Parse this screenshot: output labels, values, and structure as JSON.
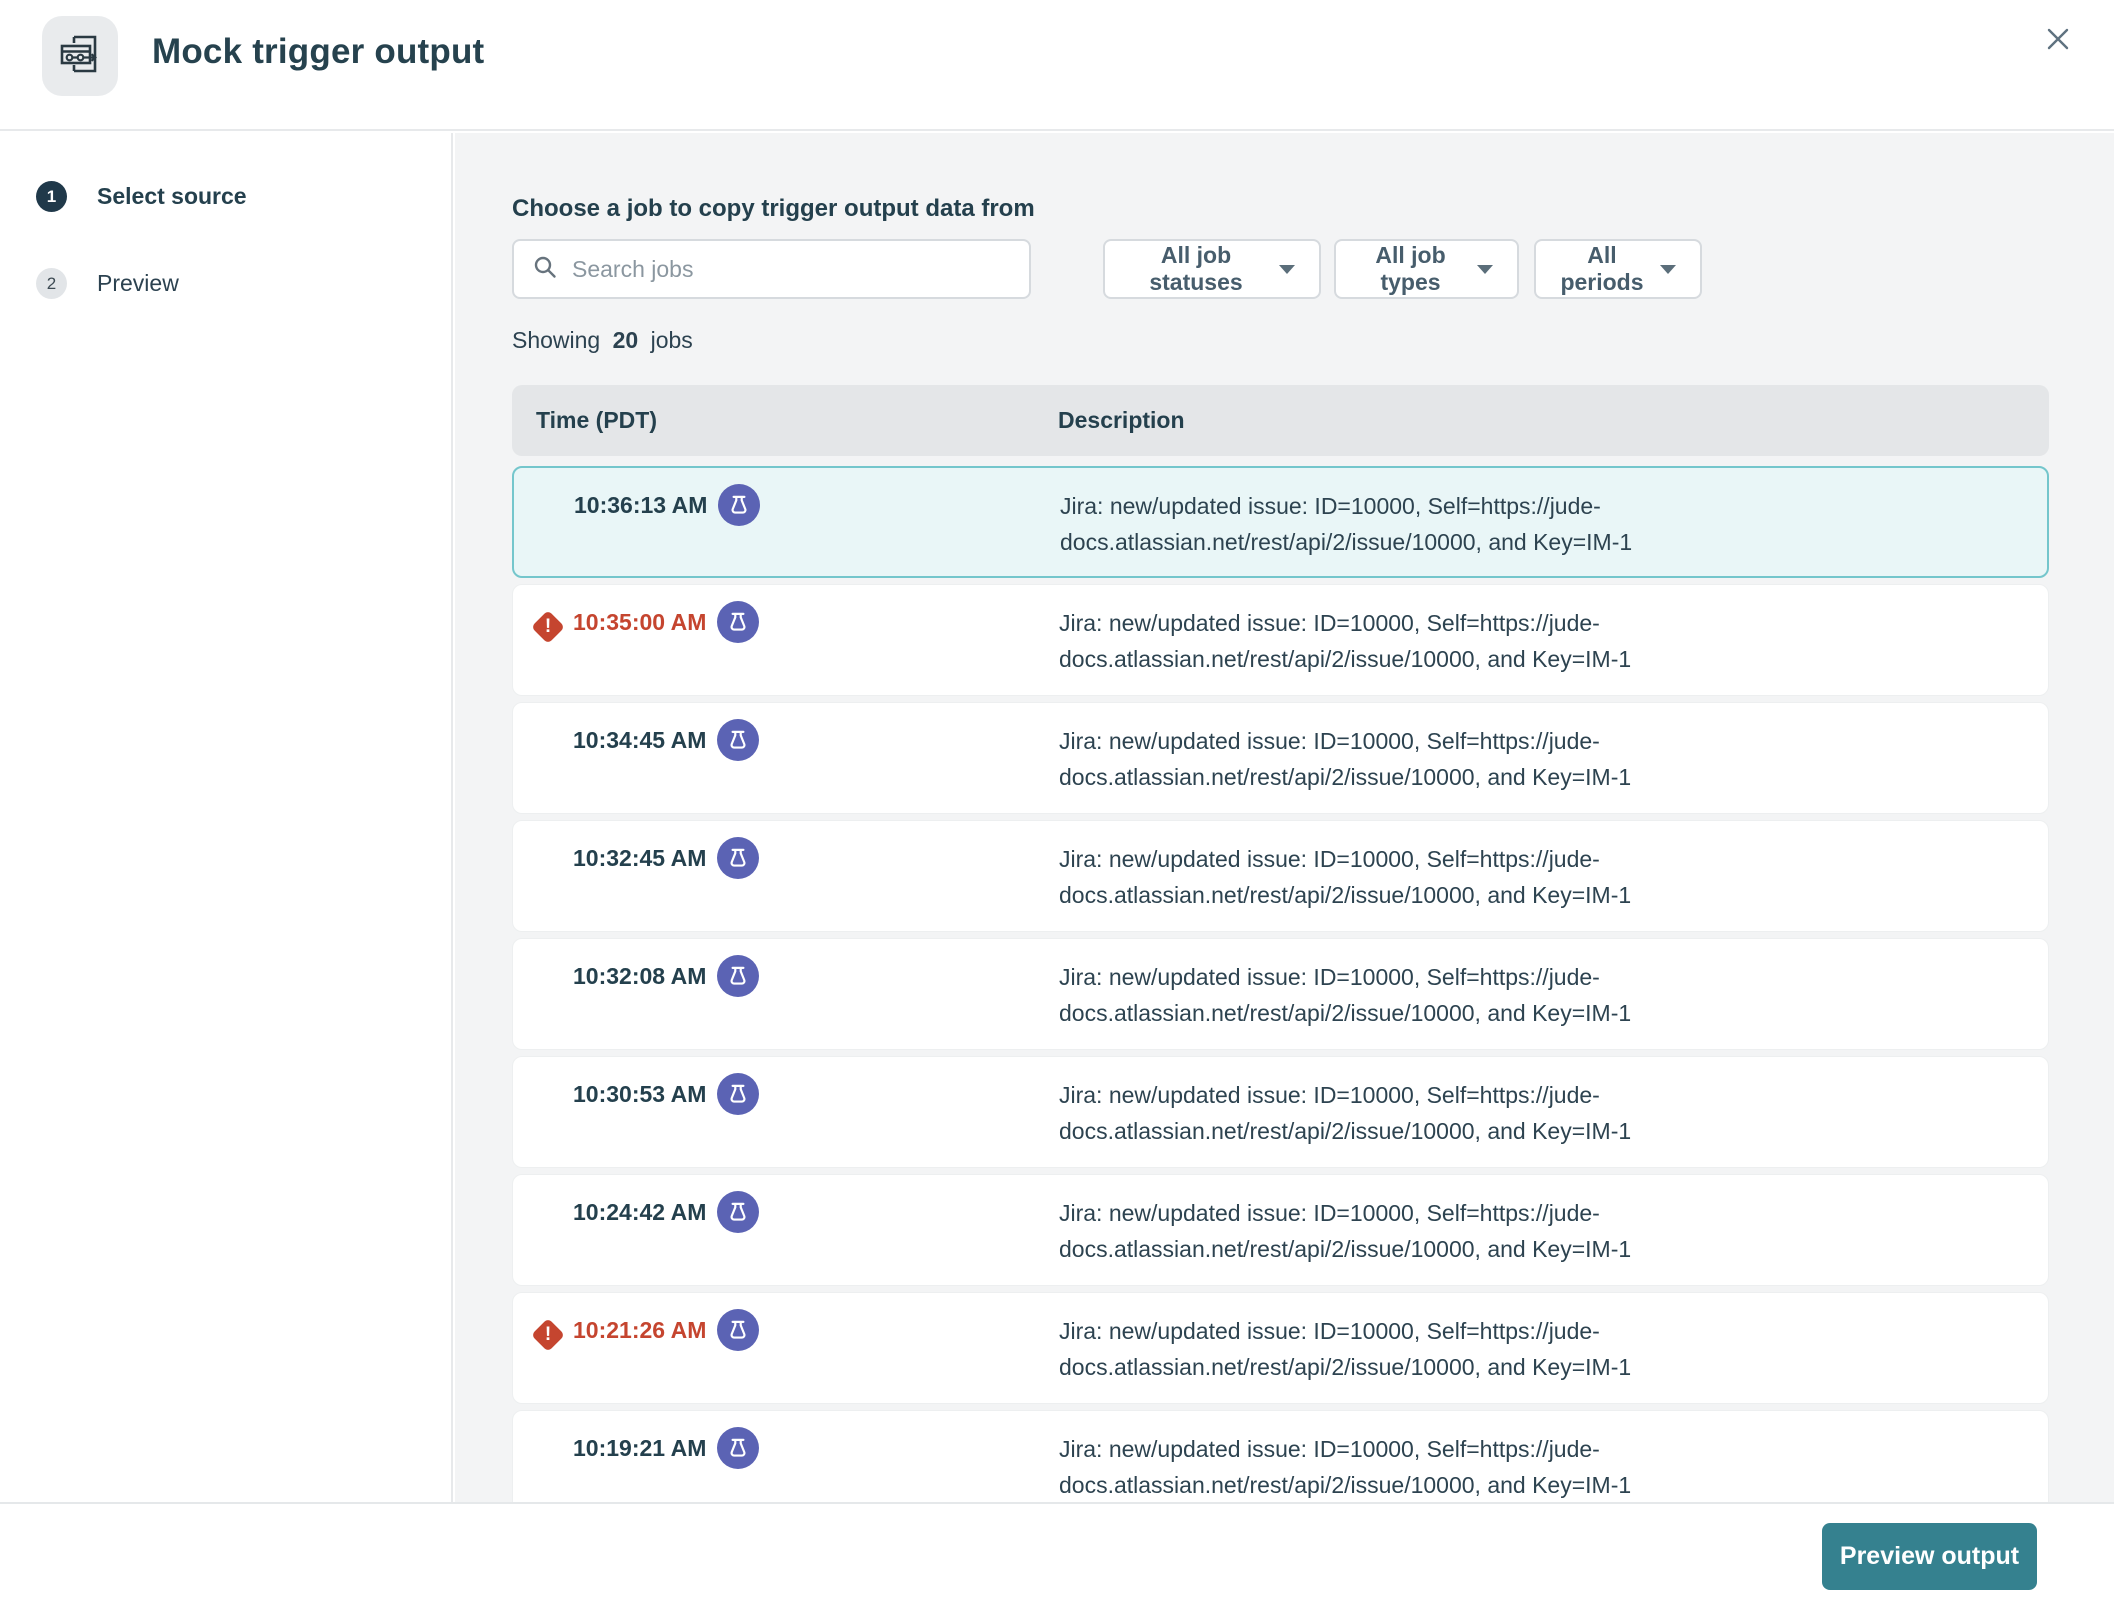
{
  "dialog": {
    "title": "Mock trigger output"
  },
  "steps": [
    {
      "number": "1",
      "label": "Select source",
      "active": true
    },
    {
      "number": "2",
      "label": "Preview",
      "active": false
    }
  ],
  "main": {
    "heading": "Choose a job to copy trigger output data from",
    "search": {
      "placeholder": "Search jobs"
    },
    "filters": {
      "statuses": "All job statuses",
      "types": "All job types",
      "periods": "All periods"
    },
    "showing": {
      "prefix": "Showing",
      "count": "20",
      "suffix": "jobs"
    },
    "table": {
      "columns": {
        "time": "Time (PDT)",
        "description": "Description"
      },
      "rows": [
        {
          "time": "10:36:13 AM",
          "error": false,
          "selected": true,
          "description": "Jira: new/updated issue: ID=10000, Self=https://jude-docs.atlassian.net/rest/api/2/issue/10000, and Key=IM-1"
        },
        {
          "time": "10:35:00 AM",
          "error": true,
          "selected": false,
          "description": "Jira: new/updated issue: ID=10000, Self=https://jude-docs.atlassian.net/rest/api/2/issue/10000, and Key=IM-1"
        },
        {
          "time": "10:34:45 AM",
          "error": false,
          "selected": false,
          "description": "Jira: new/updated issue: ID=10000, Self=https://jude-docs.atlassian.net/rest/api/2/issue/10000, and Key=IM-1"
        },
        {
          "time": "10:32:45 AM",
          "error": false,
          "selected": false,
          "description": "Jira: new/updated issue: ID=10000, Self=https://jude-docs.atlassian.net/rest/api/2/issue/10000, and Key=IM-1"
        },
        {
          "time": "10:32:08 AM",
          "error": false,
          "selected": false,
          "description": "Jira: new/updated issue: ID=10000, Self=https://jude-docs.atlassian.net/rest/api/2/issue/10000, and Key=IM-1"
        },
        {
          "time": "10:30:53 AM",
          "error": false,
          "selected": false,
          "description": "Jira: new/updated issue: ID=10000, Self=https://jude-docs.atlassian.net/rest/api/2/issue/10000, and Key=IM-1"
        },
        {
          "time": "10:24:42 AM",
          "error": false,
          "selected": false,
          "description": "Jira: new/updated issue: ID=10000, Self=https://jude-docs.atlassian.net/rest/api/2/issue/10000, and Key=IM-1"
        },
        {
          "time": "10:21:26 AM",
          "error": true,
          "selected": false,
          "description": "Jira: new/updated issue: ID=10000, Self=https://jude-docs.atlassian.net/rest/api/2/issue/10000, and Key=IM-1"
        },
        {
          "time": "10:19:21 AM",
          "error": false,
          "selected": false,
          "description": "Jira: new/updated issue: ID=10000, Self=https://jude-docs.atlassian.net/rest/api/2/issue/10000, and Key=IM-1"
        }
      ]
    }
  },
  "footer": {
    "primary_button": "Preview output"
  },
  "icons": {
    "app": "mock-output-icon",
    "close": "close-icon",
    "search": "search-icon",
    "caret": "caret-down-icon",
    "badge": "flask-icon",
    "warning": "warning-diamond-icon"
  },
  "colors": {
    "accent_teal": "#35818f",
    "selected_row_bg": "#e9f6f7",
    "selected_row_border": "#74c6cc",
    "badge_purple": "#5b63b4",
    "error_red": "#c5452f",
    "text_dark": "#24404d",
    "text_muted": "#8b97a0",
    "table_header_bg": "#e4e6e8",
    "panel_bg": "#f3f4f5"
  }
}
